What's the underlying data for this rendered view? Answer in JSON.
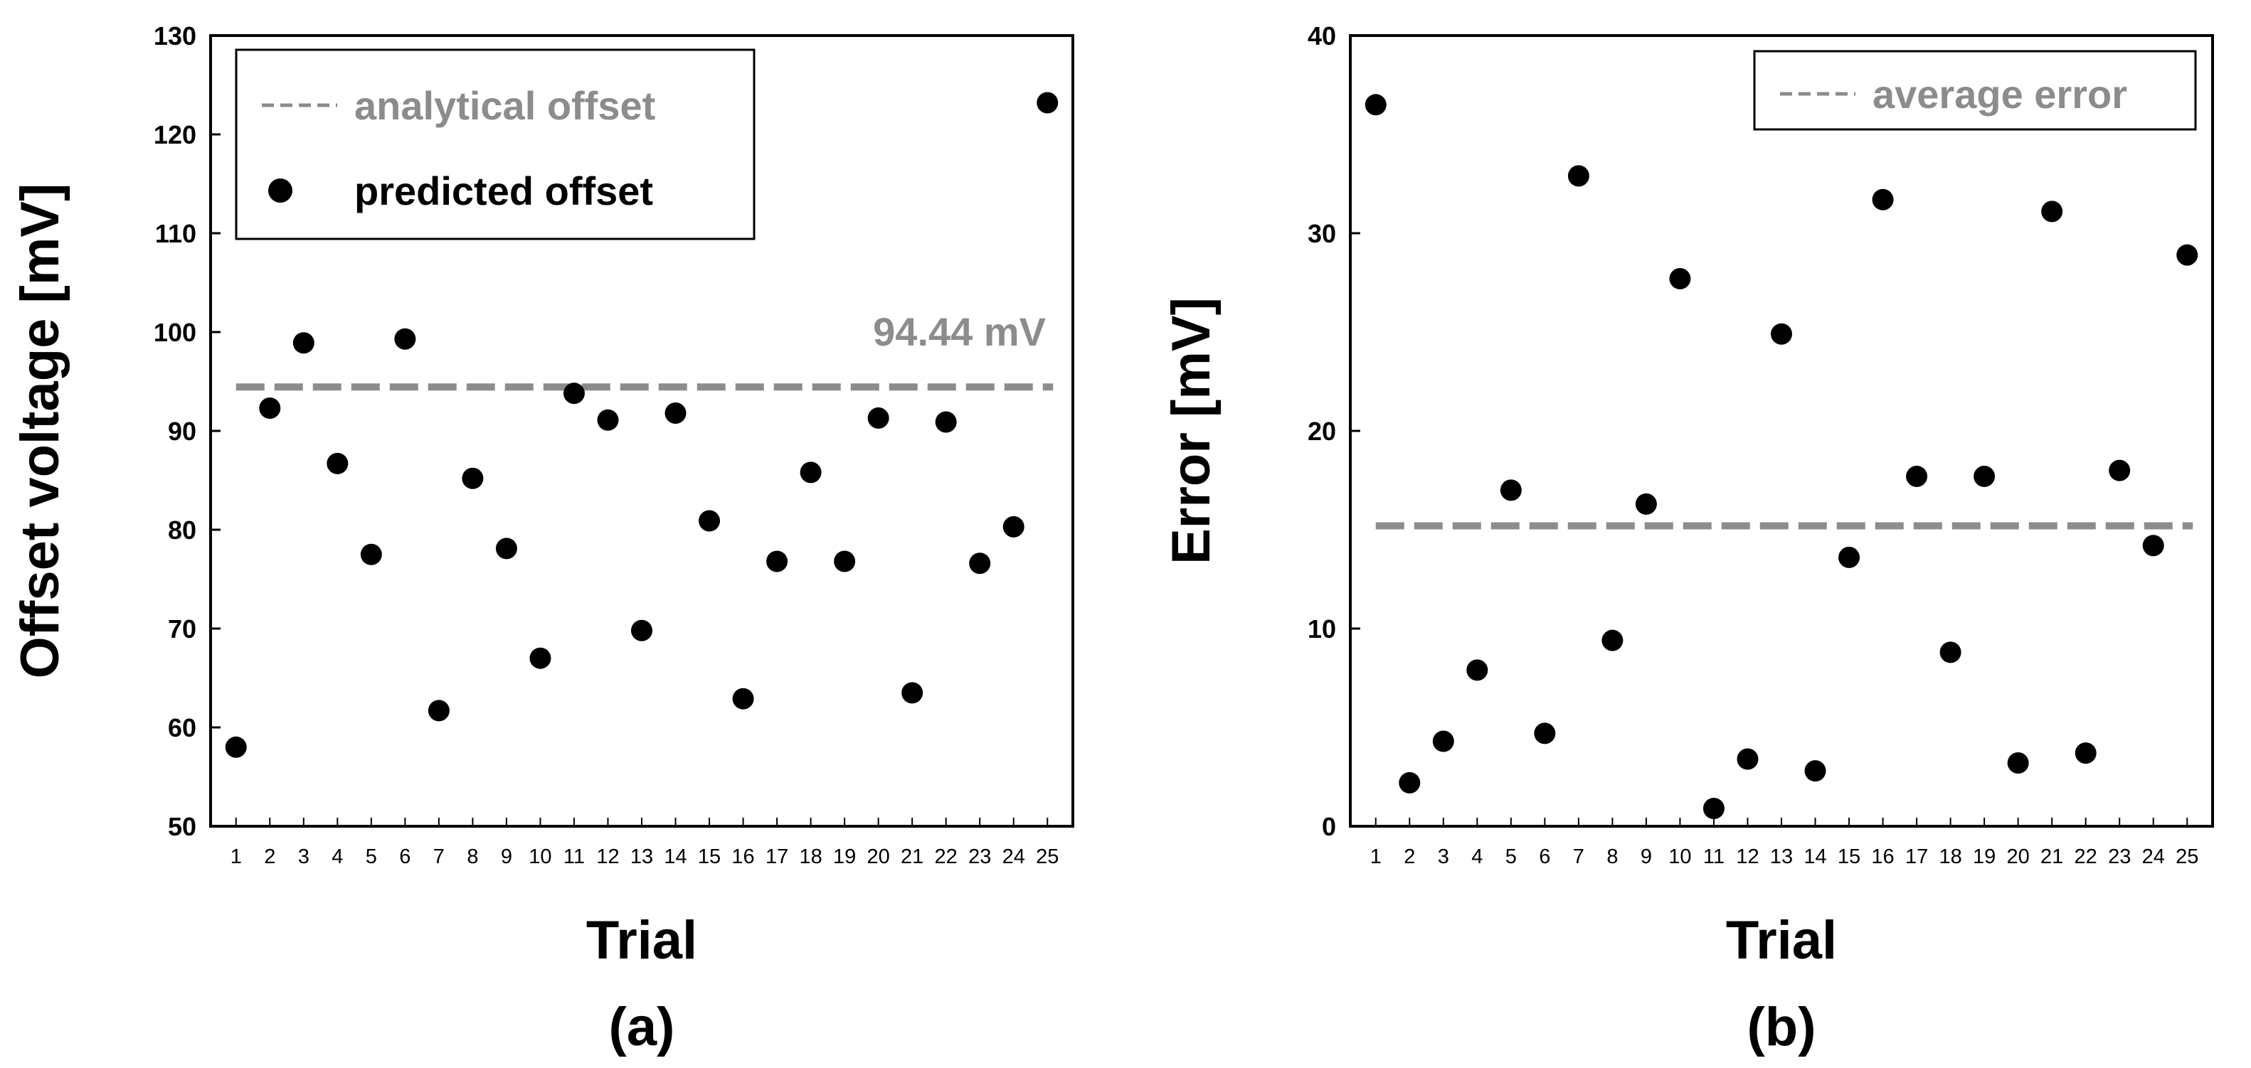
{
  "chart_data": [
    {
      "type": "scatter",
      "panel_label": "(a)",
      "xlabel": "Trial",
      "ylabel": "Offset voltage [mV]",
      "ylim": [
        50,
        130
      ],
      "yticks": [
        50,
        60,
        70,
        80,
        90,
        100,
        110,
        120,
        130
      ],
      "x": [
        1,
        2,
        3,
        4,
        5,
        6,
        7,
        8,
        9,
        10,
        11,
        12,
        13,
        14,
        15,
        16,
        17,
        18,
        19,
        20,
        21,
        22,
        23,
        24,
        25
      ],
      "x_tick_labels": [
        "1",
        "2",
        "3",
        "4",
        "5",
        "6",
        "7",
        "8",
        "9",
        "10",
        "11",
        "12",
        "13",
        "14",
        "15",
        "16",
        "17",
        "18",
        "19",
        "20",
        "21",
        "22",
        "23",
        "24",
        "25"
      ],
      "series": [
        {
          "name": "predicted offset",
          "marker": "circle",
          "color": "#000000",
          "values": [
            58.0,
            92.3,
            98.9,
            86.7,
            77.5,
            99.3,
            61.7,
            85.2,
            78.1,
            67.0,
            93.8,
            91.1,
            69.8,
            91.8,
            80.9,
            62.9,
            76.8,
            85.8,
            76.8,
            91.3,
            63.5,
            90.9,
            76.6,
            80.3,
            123.2
          ]
        }
      ],
      "reference_line": {
        "name": "analytical offset",
        "value": 94.44,
        "style": "dashed",
        "color": "#8c8c8c"
      },
      "annotation": "94.44 mV",
      "legend": {
        "placement": "top-left",
        "entries": [
          {
            "label": "analytical offset",
            "symbol": "dashed-line",
            "color": "#8c8c8c"
          },
          {
            "label": "predicted offset",
            "symbol": "dot",
            "color": "#000000"
          }
        ]
      }
    },
    {
      "type": "scatter",
      "panel_label": "(b)",
      "xlabel": "Trial",
      "ylabel": "Error [mV]",
      "ylim": [
        0,
        40
      ],
      "yticks": [
        0,
        10,
        20,
        30,
        40
      ],
      "x": [
        1,
        2,
        3,
        4,
        5,
        6,
        7,
        8,
        9,
        10,
        11,
        12,
        13,
        14,
        15,
        16,
        17,
        18,
        19,
        20,
        21,
        22,
        23,
        24,
        25
      ],
      "x_tick_labels": [
        "1",
        "2",
        "3",
        "4",
        "5",
        "6",
        "7",
        "8",
        "9",
        "10",
        "11",
        "12",
        "13",
        "14",
        "15",
        "16",
        "17",
        "18",
        "19",
        "20",
        "21",
        "22",
        "23",
        "24",
        "25"
      ],
      "series": [
        {
          "name": "error",
          "marker": "circle",
          "color": "#000000",
          "values": [
            36.5,
            2.2,
            4.3,
            7.9,
            17.0,
            4.7,
            32.9,
            9.4,
            16.3,
            27.7,
            0.9,
            3.4,
            24.9,
            2.8,
            13.6,
            31.7,
            17.7,
            8.8,
            17.7,
            3.2,
            31.1,
            3.7,
            18.0,
            14.2,
            28.9
          ]
        }
      ],
      "reference_line": {
        "name": "average error",
        "value": 15.2,
        "style": "dashed",
        "color": "#8c8c8c"
      },
      "legend": {
        "placement": "top-right",
        "entries": [
          {
            "label": "average error",
            "symbol": "dashed-line",
            "color": "#8c8c8c"
          }
        ]
      }
    }
  ]
}
